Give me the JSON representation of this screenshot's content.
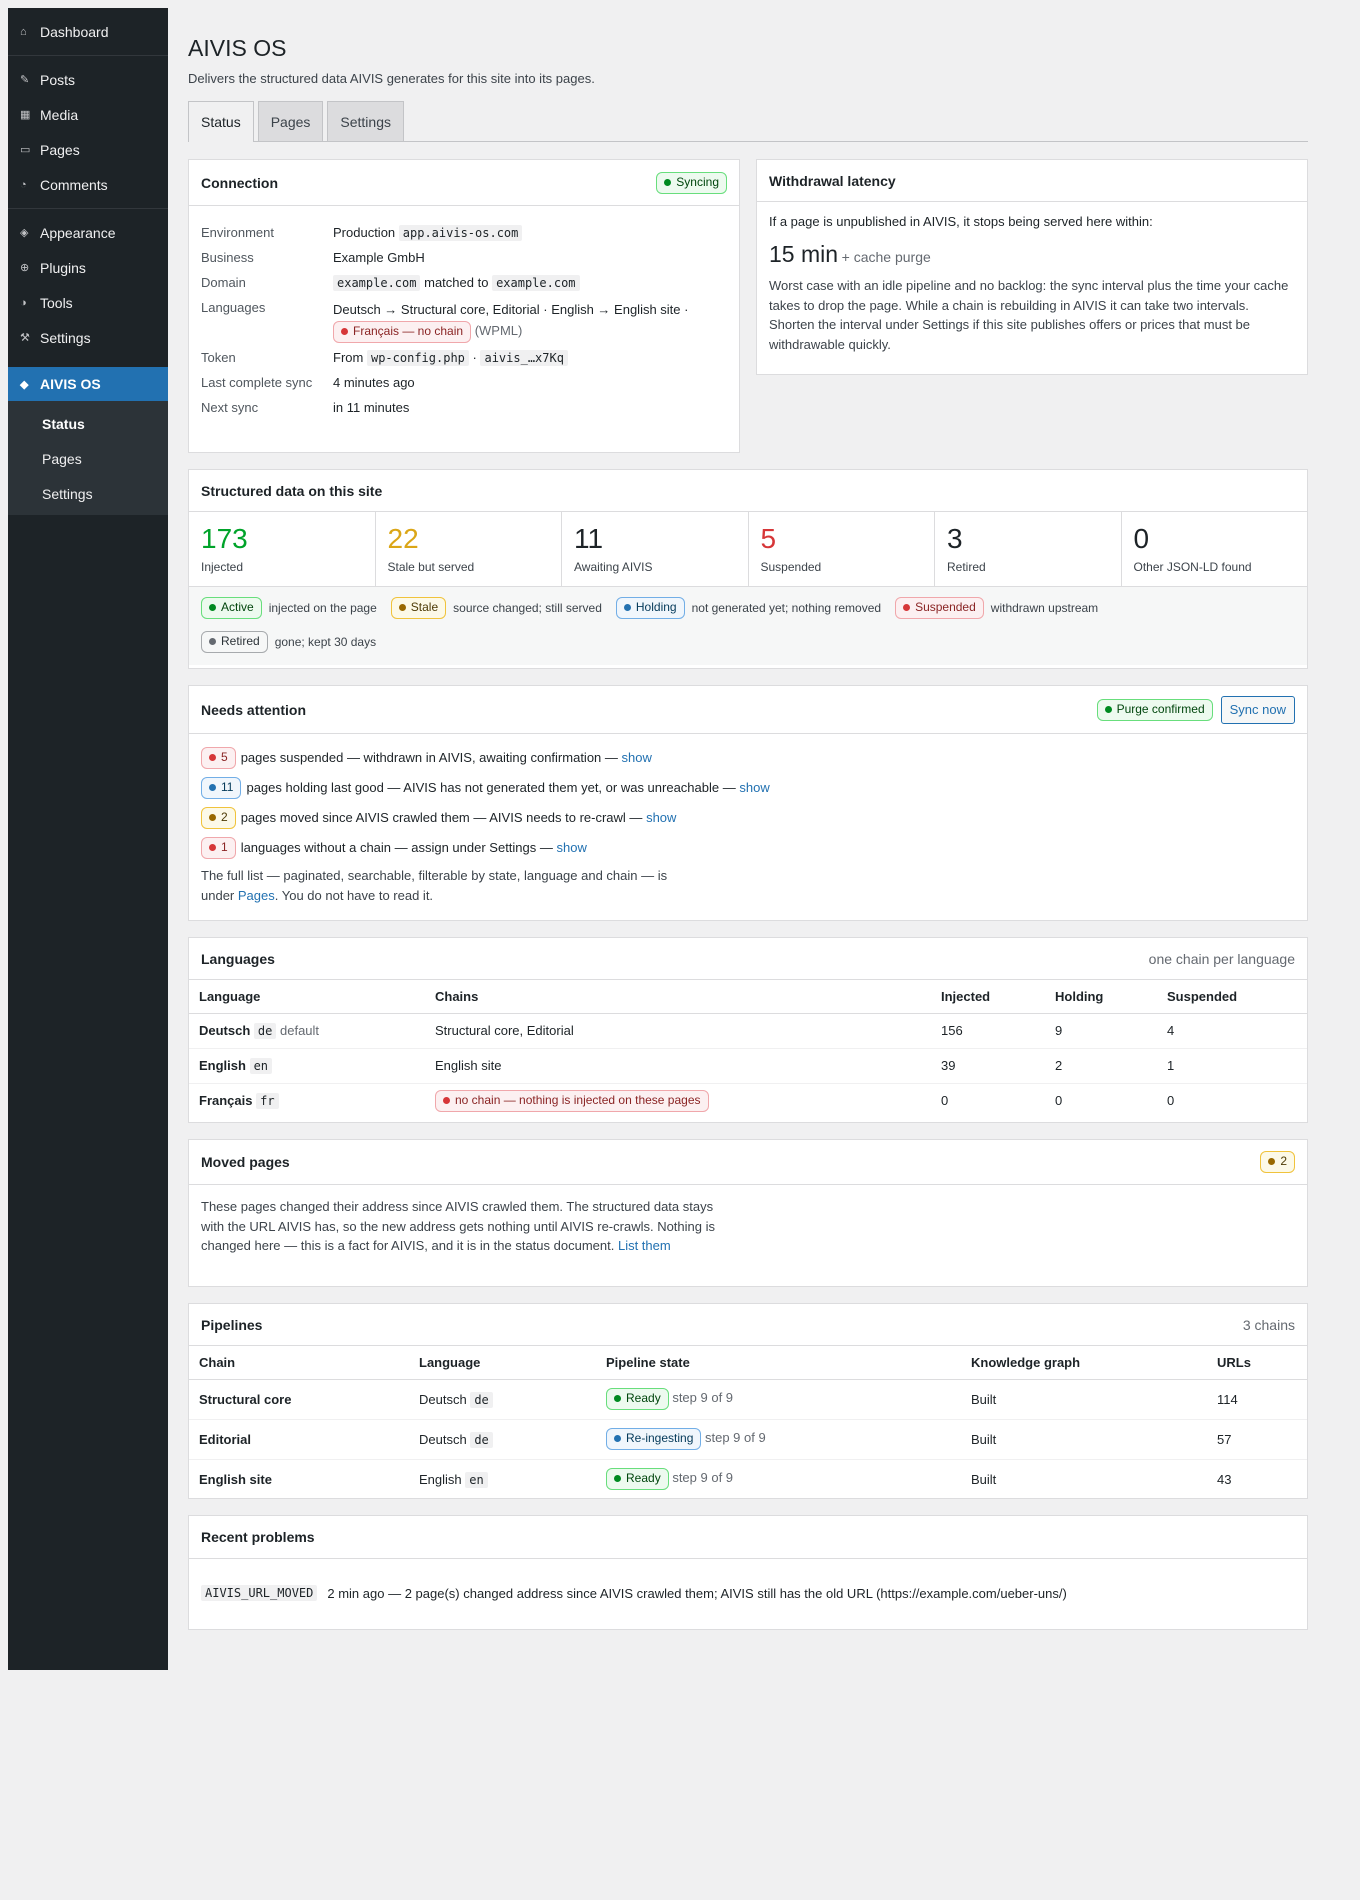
{
  "sidebar": {
    "dashboard": "Dashboard",
    "group1": [
      {
        "label": "Posts",
        "icon": "pin-icon"
      },
      {
        "label": "Media",
        "icon": "media-icon"
      },
      {
        "label": "Pages",
        "icon": "page-icon"
      },
      {
        "label": "Comments",
        "icon": "comment-icon"
      }
    ],
    "group2": [
      {
        "label": "Appearance",
        "icon": "brush-icon"
      },
      {
        "label": "Plugins",
        "icon": "plugin-icon"
      },
      {
        "label": "Tools",
        "icon": "wrench-icon"
      },
      {
        "label": "Settings",
        "icon": "settings-icon"
      }
    ],
    "current": "AIVIS OS",
    "submenu": [
      "Status",
      "Pages",
      "Settings"
    ]
  },
  "page": {
    "title": "AIVIS OS",
    "lead": "Delivers the structured data AIVIS generates for this site into its pages.",
    "tabs": [
      "Status",
      "Pages",
      "Settings"
    ]
  },
  "connection": {
    "title": "Connection",
    "status": "Syncing",
    "environment_label": "Environment",
    "environment_value": "Production",
    "environment_host": "app.aivis-os.com",
    "business_label": "Business",
    "business_value": "Example GmbH",
    "domain_label": "Domain",
    "domain_value": "example.com",
    "domain_matched": "matched to",
    "domain_match": "example.com",
    "languages_label": "Languages",
    "languages_value": "Deutsch → Structural core, Editorial · English → English site ·",
    "languages_nochain": "Français — no chain",
    "languages_suffix": "(WPML)",
    "token_label": "Token",
    "token_from": "From",
    "token_file": "wp-config.php",
    "token_sep": "·",
    "token_value": "aivis_…x7Kq",
    "last_sync_label": "Last complete sync",
    "last_sync_value": "4 minutes ago",
    "next_sync_label": "Next sync",
    "next_sync_value": "in 11 minutes"
  },
  "latency": {
    "title": "Withdrawal latency",
    "intro": "If a page is unpublished in AIVIS, it stops being served here within:",
    "value": "15 min",
    "suffix": "+ cache purge",
    "body": "Worst case with an idle pipeline and no backlog: the sync interval plus the time your cache takes to drop the page. While a chain is rebuilding in AIVIS it can take two intervals. Shorten the interval under Settings if this site publishes offers or prices that must be withdrawable quickly."
  },
  "structured": {
    "title": "Structured data on this site",
    "stats": [
      {
        "value": "173",
        "label": "Injected",
        "color": "#00a32a"
      },
      {
        "value": "22",
        "label": "Stale but served",
        "color": "#dba617"
      },
      {
        "value": "11",
        "label": "Awaiting AIVIS",
        "color": "#1d2327"
      },
      {
        "value": "5",
        "label": "Suspended",
        "color": "#d63638"
      },
      {
        "value": "3",
        "label": "Retired",
        "color": "#1d2327"
      },
      {
        "value": "0",
        "label": "Other JSON-LD found",
        "color": "#1d2327"
      }
    ],
    "legend": [
      {
        "pill": "Active",
        "text": "injected on the page"
      },
      {
        "pill": "Stale",
        "text": "source changed; still served"
      },
      {
        "pill": "Holding",
        "text": "not generated yet; nothing removed"
      },
      {
        "pill": "Suspended",
        "text": "withdrawn upstream"
      },
      {
        "pill": "Retired",
        "text": "gone; kept 30 days"
      }
    ]
  },
  "attention": {
    "title": "Needs attention",
    "purge": "Purge confirmed",
    "sync_now": "Sync now",
    "rows": [
      {
        "count": "5",
        "text": "pages suspended — withdrawn in AIVIS, awaiting confirmation —",
        "link": "show"
      },
      {
        "count": "11",
        "text": "pages holding last good — AIVIS has not generated them yet, or was unreachable —",
        "link": "show"
      },
      {
        "count": "2",
        "text": "pages moved since AIVIS crawled them — AIVIS needs to re-crawl —",
        "link": "show"
      },
      {
        "count": "1",
        "text": "languages without a chain — assign under Settings —",
        "link": "show"
      }
    ],
    "footer_line1": "The full list — paginated, searchable, filterable by state, language and chain — is",
    "footer_under": "under",
    "footer_link": "Pages",
    "footer_end": ". You do not have to read it."
  },
  "languages": {
    "title": "Languages",
    "meta": "one chain per language",
    "headers": [
      "Language",
      "Chains",
      "Injected",
      "Holding",
      "Suspended"
    ],
    "rows": [
      {
        "name": "Deutsch",
        "code": "de",
        "note": "default",
        "chains": "Structural core, Editorial",
        "injected": "156",
        "holding": "9",
        "suspended": "4"
      },
      {
        "name": "English",
        "code": "en",
        "note": "",
        "chains": "English site",
        "injected": "39",
        "holding": "2",
        "suspended": "1"
      },
      {
        "name": "Français",
        "code": "fr",
        "note": "",
        "chains": "no chain — nothing is injected on these pages",
        "injected": "0",
        "holding": "0",
        "suspended": "0"
      }
    ]
  },
  "moved": {
    "title": "Moved pages",
    "count": "2",
    "body": "These pages changed their address since AIVIS crawled them. The structured data stays with the URL AIVIS has, so the new address gets nothing until AIVIS re-crawls. Nothing is changed here — this is a fact for AIVIS, and it is in the status document.",
    "link": "List them"
  },
  "pipelines": {
    "title": "Pipelines",
    "meta": "3 chains",
    "headers": [
      "Chain",
      "Language",
      "Pipeline state",
      "Knowledge graph",
      "URLs"
    ],
    "rows": [
      {
        "chain": "Structural core",
        "lang": "Deutsch",
        "code": "de",
        "state": "Ready",
        "step": "step 9 of 9",
        "graph": "Built",
        "urls": "114"
      },
      {
        "chain": "Editorial",
        "lang": "Deutsch",
        "code": "de",
        "state": "Re-ingesting",
        "step": "step 9 of 9",
        "graph": "Built",
        "urls": "57"
      },
      {
        "chain": "English site",
        "lang": "English",
        "code": "en",
        "state": "Ready",
        "step": "step 9 of 9",
        "graph": "Built",
        "urls": "43"
      }
    ]
  },
  "problems": {
    "title": "Recent problems",
    "code": "AIVIS_URL_MOVED",
    "text": "2 min ago — 2 page(s) changed address since AIVIS crawled them; AIVIS still has the old URL (https://example.com/ueber-uns/)"
  }
}
